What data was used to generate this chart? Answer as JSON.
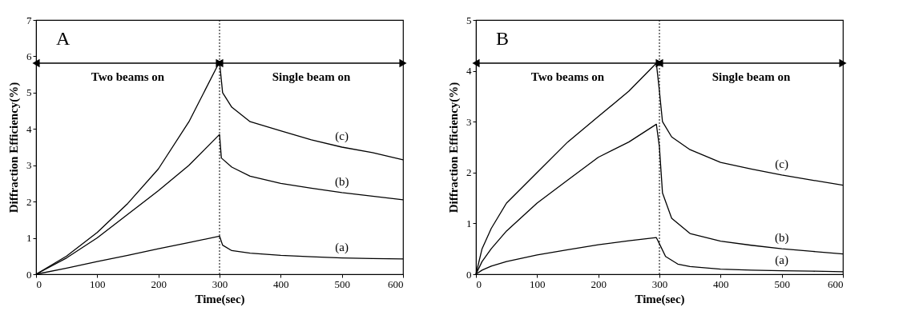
{
  "chart_data": [
    {
      "type": "line",
      "title": "A",
      "xlabel": "Time(sec)",
      "ylabel": "Diffraction  Efficiency(%)",
      "xlim": [
        0,
        600
      ],
      "ylim": [
        0,
        7
      ],
      "xticks": [
        0,
        100,
        200,
        300,
        400,
        500,
        600
      ],
      "yticks": [
        0,
        1,
        2,
        3,
        4,
        5,
        6,
        7
      ],
      "grid": false,
      "legend": false,
      "marker": "none",
      "line_style": "solid",
      "ref_lines": [
        {
          "axis": "x",
          "value": 300,
          "line_style": "dotted"
        }
      ],
      "annotations": [
        "Two beams on",
        "Single beam on"
      ],
      "series": [
        {
          "name": "(a)",
          "color": "#000000",
          "x": [
            0,
            50,
            100,
            150,
            200,
            250,
            300,
            305,
            320,
            350,
            400,
            450,
            500,
            550,
            600
          ],
          "values": [
            0,
            0.17,
            0.35,
            0.52,
            0.7,
            0.87,
            1.05,
            0.8,
            0.65,
            0.58,
            0.52,
            0.48,
            0.45,
            0.43,
            0.42
          ]
        },
        {
          "name": "(b)",
          "color": "#000000",
          "x": [
            0,
            50,
            100,
            150,
            200,
            250,
            300,
            303,
            320,
            350,
            400,
            450,
            500,
            550,
            600
          ],
          "values": [
            0,
            0.45,
            1.0,
            1.65,
            2.3,
            3.0,
            3.85,
            3.2,
            2.95,
            2.7,
            2.5,
            2.37,
            2.25,
            2.15,
            2.05
          ]
        },
        {
          "name": "(c)",
          "color": "#000000",
          "x": [
            0,
            50,
            100,
            150,
            200,
            250,
            300,
            305,
            320,
            350,
            400,
            450,
            500,
            550,
            600
          ],
          "values": [
            0,
            0.5,
            1.15,
            1.95,
            2.9,
            4.2,
            5.85,
            5.0,
            4.6,
            4.2,
            3.95,
            3.7,
            3.5,
            3.35,
            3.15
          ]
        }
      ]
    },
    {
      "type": "line",
      "title": "B",
      "xlabel": "Time(sec)",
      "ylabel": "Diffraction  Efficiency(%)",
      "xlim": [
        0,
        600
      ],
      "ylim": [
        0,
        5
      ],
      "xticks": [
        0,
        100,
        200,
        300,
        400,
        500,
        600
      ],
      "yticks": [
        0,
        1,
        2,
        3,
        4,
        5
      ],
      "grid": false,
      "legend": false,
      "marker": "none",
      "line_style": "solid",
      "ref_lines": [
        {
          "axis": "x",
          "value": 300,
          "line_style": "dotted"
        }
      ],
      "annotations": [
        "Two beams on",
        "Single beam on"
      ],
      "series": [
        {
          "name": "(a)",
          "color": "#000000",
          "x": [
            0,
            10,
            25,
            50,
            100,
            150,
            200,
            250,
            295,
            300,
            310,
            330,
            350,
            400,
            450,
            500,
            550,
            600
          ],
          "values": [
            0,
            0.08,
            0.16,
            0.25,
            0.38,
            0.48,
            0.58,
            0.66,
            0.72,
            0.6,
            0.35,
            0.2,
            0.15,
            0.1,
            0.08,
            0.07,
            0.06,
            0.05
          ]
        },
        {
          "name": "(b)",
          "color": "#000000",
          "x": [
            0,
            10,
            25,
            50,
            100,
            150,
            200,
            250,
            295,
            300,
            305,
            320,
            350,
            400,
            450,
            500,
            550,
            600
          ],
          "values": [
            0,
            0.25,
            0.5,
            0.85,
            1.4,
            1.85,
            2.3,
            2.6,
            2.95,
            2.5,
            1.6,
            1.1,
            0.8,
            0.65,
            0.57,
            0.5,
            0.45,
            0.4
          ]
        },
        {
          "name": "(c)",
          "color": "#000000",
          "x": [
            0,
            10,
            25,
            50,
            100,
            150,
            200,
            250,
            295,
            300,
            305,
            320,
            350,
            400,
            450,
            500,
            550,
            600
          ],
          "values": [
            0,
            0.5,
            0.9,
            1.4,
            2.0,
            2.6,
            3.1,
            3.6,
            4.15,
            3.6,
            3.0,
            2.7,
            2.45,
            2.2,
            2.07,
            1.95,
            1.85,
            1.75
          ]
        }
      ]
    }
  ]
}
